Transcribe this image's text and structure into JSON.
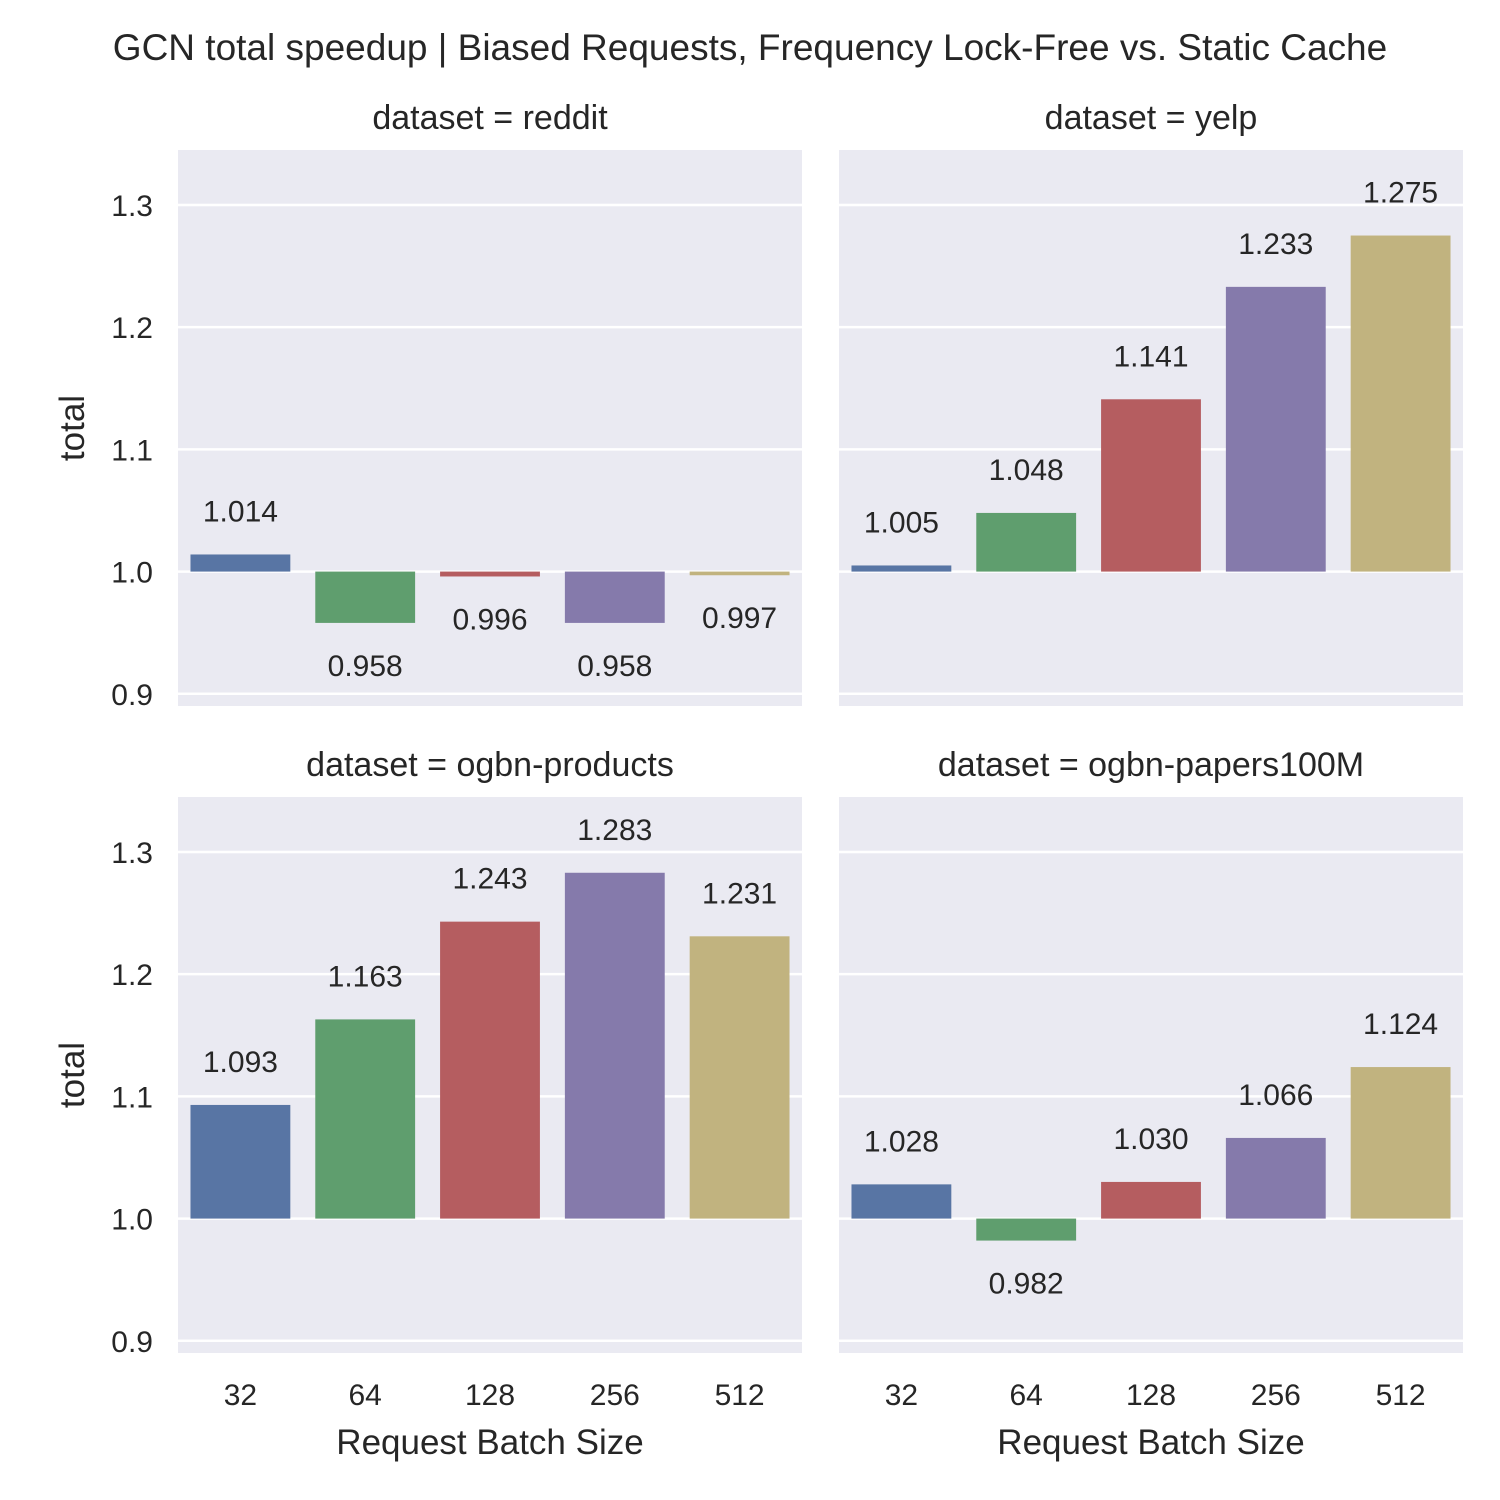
{
  "chart_data": {
    "type": "bar",
    "title": "GCN total speedup | Biased Requests, Frequency Lock-Free vs. Static Cache",
    "xlabel": "Request Batch Size",
    "ylabel": "total",
    "categories": [
      "32",
      "64",
      "128",
      "256",
      "512"
    ],
    "ylim": [
      0.89,
      1.345
    ],
    "yticks": [
      0.9,
      1.0,
      1.1,
      1.2,
      1.3
    ],
    "ytick_labels": [
      "0.9",
      "1.0",
      "1.1",
      "1.2",
      "1.3"
    ],
    "baseline": 1.0,
    "grid": true,
    "colors": [
      "#5875a4",
      "#5f9e6e",
      "#b55d60",
      "#857aab",
      "#c1b37f"
    ],
    "background": "#eaeaf2",
    "facets": [
      {
        "title": "dataset = reddit",
        "values": [
          1.014,
          0.958,
          0.996,
          0.958,
          0.997
        ],
        "labels": [
          "1.014",
          "0.958",
          "0.996",
          "0.958",
          "0.997"
        ]
      },
      {
        "title": "dataset = yelp",
        "values": [
          1.005,
          1.048,
          1.141,
          1.233,
          1.275
        ],
        "labels": [
          "1.005",
          "1.048",
          "1.141",
          "1.233",
          "1.275"
        ]
      },
      {
        "title": "dataset = ogbn-products",
        "values": [
          1.093,
          1.163,
          1.243,
          1.283,
          1.231
        ],
        "labels": [
          "1.093",
          "1.163",
          "1.243",
          "1.283",
          "1.231"
        ]
      },
      {
        "title": "dataset = ogbn-papers100M",
        "values": [
          1.028,
          0.982,
          1.03,
          1.066,
          1.124
        ],
        "labels": [
          "1.028",
          "0.982",
          "1.030",
          "1.066",
          "1.124"
        ]
      }
    ]
  }
}
